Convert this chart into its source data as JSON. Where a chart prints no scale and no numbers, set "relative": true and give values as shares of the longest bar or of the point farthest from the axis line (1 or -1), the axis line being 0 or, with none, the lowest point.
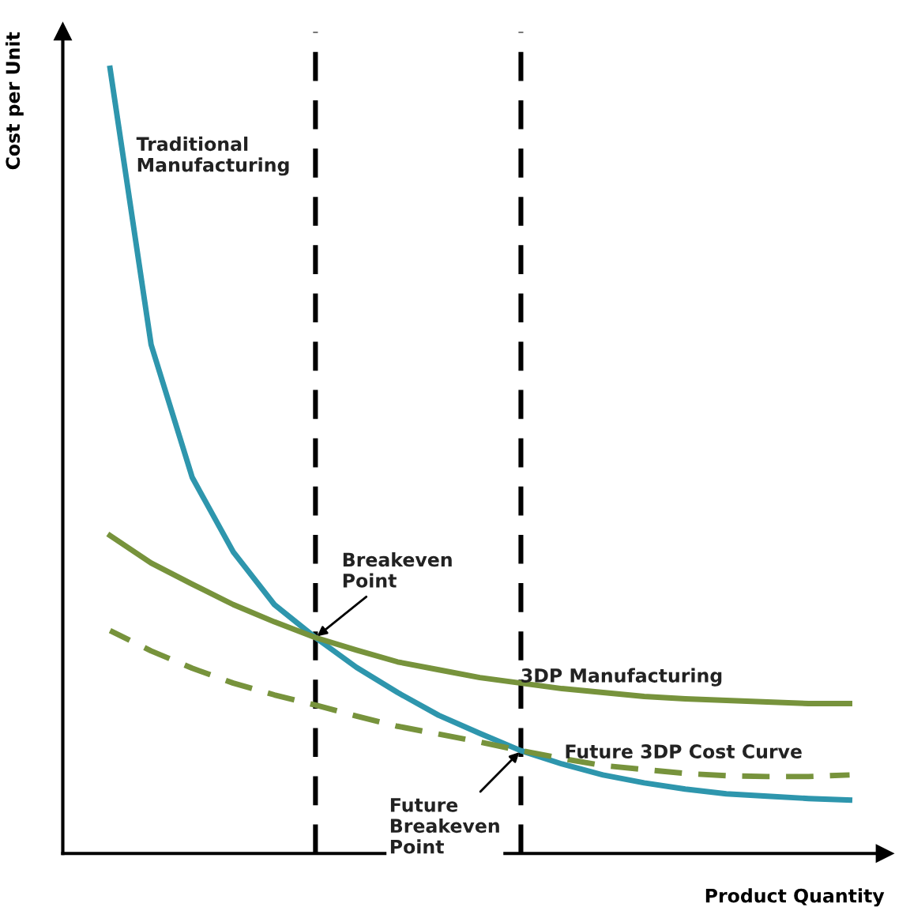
{
  "chart_data": {
    "type": "line",
    "relative": true,
    "xlabel": "Product Quantity",
    "ylabel": "Cost per Unit",
    "line_style": "solid",
    "marker": "none",
    "categories": [
      null,
      null,
      null,
      null,
      null,
      null,
      null,
      null,
      null,
      null,
      null,
      null,
      null,
      null,
      null,
      null,
      null,
      null,
      null
    ],
    "series": [
      {
        "name": "Traditional Manufacturing",
        "color": "#2e96ad",
        "values": [
          1.0,
          0.648,
          0.479,
          0.384,
          0.317,
          0.275,
          0.237,
          0.205,
          0.176,
          0.153,
          0.131,
          0.114,
          0.1,
          0.09,
          0.082,
          0.076,
          0.073,
          0.07,
          0.068
        ]
      },
      {
        "name": "3DP Manufacturing",
        "color": "#77933c",
        "values": [
          0.405,
          0.37,
          0.343,
          0.317,
          0.295,
          0.275,
          0.259,
          0.244,
          0.234,
          0.224,
          0.217,
          0.21,
          0.205,
          0.2,
          0.197,
          0.195,
          0.193,
          0.191,
          0.191
        ]
      },
      {
        "name": "Future 3DP Cost Curve",
        "color": "#77933c",
        "line_style": "dashed",
        "values": [
          0.284,
          0.258,
          0.236,
          0.217,
          0.202,
          0.189,
          0.175,
          0.162,
          0.152,
          0.142,
          0.131,
          0.121,
          0.112,
          0.107,
          0.102,
          0.099,
          0.098,
          0.098,
          0.1
        ]
      }
    ],
    "annotations": [
      "Breakeven\nPoint",
      "Future\nBreakeven\nPoint"
    ]
  }
}
